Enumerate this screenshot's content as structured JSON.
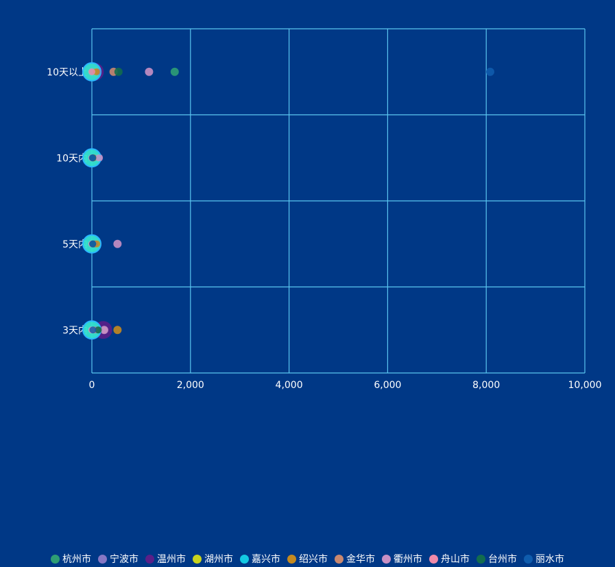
{
  "chart_data": {
    "type": "scatter",
    "categories": [
      "3天内",
      "5天内",
      "10天内",
      "10天以上"
    ],
    "x_ticks": [
      "0",
      "2,000",
      "4,000",
      "6,000",
      "8,000",
      "10,000"
    ],
    "xlim": [
      0,
      10000
    ],
    "grid": true,
    "legend_position": "bottom",
    "background_color": "#003886",
    "axis_color": "#5bc6f0",
    "series": [
      {
        "name": "杭州市",
        "color": "#2e9e74",
        "points": [
          {
            "y": "3天内",
            "x": 120
          },
          {
            "y": "5天内",
            "x": 15
          },
          {
            "y": "10天内",
            "x": 10
          },
          {
            "y": "10天以上",
            "x": 1680
          }
        ]
      },
      {
        "name": "宁波市",
        "color": "#8677c4",
        "points": [
          {
            "y": "3天内",
            "x": 80
          },
          {
            "y": "5天内",
            "x": 60
          },
          {
            "y": "10天内",
            "x": 40
          },
          {
            "y": "10天以上",
            "x": 110
          }
        ]
      },
      {
        "name": "温州市",
        "color": "#5a1f88",
        "points": [
          {
            "y": "3天内",
            "x": 230,
            "big": true
          },
          {
            "y": "5天内",
            "x": 40
          },
          {
            "y": "10天内",
            "x": 20
          },
          {
            "y": "10天以上",
            "x": 60,
            "big": true
          }
        ]
      },
      {
        "name": "湖州市",
        "color": "#c8d41e",
        "points": [
          {
            "y": "3天内",
            "x": 20
          },
          {
            "y": "5天内",
            "x": 10
          },
          {
            "y": "10天内",
            "x": 5
          },
          {
            "y": "10天以上",
            "x": 30
          }
        ]
      },
      {
        "name": "嘉兴市",
        "color": "#13c9e2",
        "points": [
          {
            "y": "3天内",
            "x": 10
          },
          {
            "y": "5天内",
            "x": 10
          },
          {
            "y": "10天内",
            "x": 8
          },
          {
            "y": "10天以上",
            "x": 20
          }
        ]
      },
      {
        "name": "绍兴市",
        "color": "#c58a1f",
        "points": [
          {
            "y": "3天内",
            "x": 520
          },
          {
            "y": "5天内",
            "x": 100
          },
          {
            "y": "10天内",
            "x": 30
          },
          {
            "y": "10天以上",
            "x": 90
          }
        ]
      },
      {
        "name": "金华市",
        "color": "#c9886f",
        "points": [
          {
            "y": "3天内",
            "x": 40
          },
          {
            "y": "5天内",
            "x": 30
          },
          {
            "y": "10天内",
            "x": 20
          },
          {
            "y": "10天以上",
            "x": 440
          }
        ]
      },
      {
        "name": "衢州市",
        "color": "#c890c4",
        "points": [
          {
            "y": "3天内",
            "x": 250
          },
          {
            "y": "5天内",
            "x": 520
          },
          {
            "y": "10天内",
            "x": 140
          },
          {
            "y": "10天以上",
            "x": 1160
          }
        ]
      },
      {
        "name": "舟山市",
        "color": "#f08aa9",
        "points": [
          {
            "y": "3天内",
            "x": 0
          },
          {
            "y": "5天内",
            "x": 0
          },
          {
            "y": "10天内",
            "x": 0
          },
          {
            "y": "10天以上",
            "x": 0
          }
        ]
      },
      {
        "name": "台州市",
        "color": "#126c4e",
        "points": [
          {
            "y": "3天内",
            "x": 130
          },
          {
            "y": "5天内",
            "x": 20
          },
          {
            "y": "10天内",
            "x": 20
          },
          {
            "y": "10天以上",
            "x": 540
          }
        ]
      },
      {
        "name": "丽水市",
        "color": "#0f5cad",
        "points": [
          {
            "y": "3天内",
            "x": 20
          },
          {
            "y": "5天内",
            "x": 15
          },
          {
            "y": "10天内",
            "x": 10
          },
          {
            "y": "10天以上",
            "x": 8080
          }
        ]
      }
    ],
    "highlight": {
      "color": "#35e3cf",
      "stroke": "#2ab7ff",
      "points": [
        "3天内",
        "5天内",
        "10天内",
        "10天以上"
      ]
    }
  }
}
